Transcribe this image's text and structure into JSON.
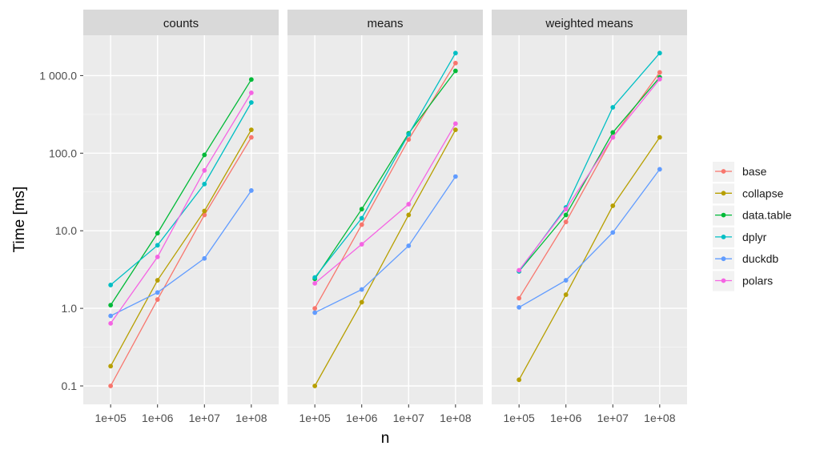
{
  "chart_data": {
    "type": "line",
    "facets": [
      "counts",
      "means",
      "weighted means"
    ],
    "x": [
      "1e+05",
      "1e+06",
      "1e+07",
      "1e+08"
    ],
    "xlabel": "n",
    "ylabel": "Time [ms]",
    "yscale": "log10",
    "ylim": [
      0.07,
      2600
    ],
    "yticks": [
      0.1,
      1,
      10,
      100,
      1000
    ],
    "ytick_labels": [
      "0.1",
      "1.0",
      "10.0",
      "100.0",
      "1 000.0"
    ],
    "legend_position": "right",
    "grid": true,
    "series": [
      {
        "name": "base",
        "color": "#F8766D",
        "values": {
          "counts": [
            0.1,
            1.3,
            16,
            160
          ],
          "means": [
            1.0,
            12,
            150,
            1450
          ],
          "weighted means": [
            1.35,
            13,
            160,
            1100
          ]
        }
      },
      {
        "name": "collapse",
        "color": "#B79F00",
        "values": {
          "counts": [
            0.18,
            2.3,
            18,
            200
          ],
          "means": [
            0.1,
            1.2,
            16,
            200
          ],
          "weighted means": [
            0.12,
            1.5,
            21,
            160
          ]
        }
      },
      {
        "name": "data.table",
        "color": "#00BA38",
        "values": {
          "counts": [
            1.1,
            9.3,
            95,
            890
          ],
          "means": [
            2.4,
            19,
            180,
            1150
          ],
          "weighted means": [
            3.0,
            16,
            185,
            950
          ]
        }
      },
      {
        "name": "dplyr",
        "color": "#00BFC4",
        "values": {
          "counts": [
            2.0,
            6.5,
            40,
            450
          ],
          "means": [
            2.5,
            14.5,
            175,
            1950
          ],
          "weighted means": [
            3.0,
            20,
            390,
            1950
          ]
        }
      },
      {
        "name": "duckdb",
        "color": "#619CFF",
        "values": {
          "counts": [
            0.8,
            1.6,
            4.4,
            33
          ],
          "means": [
            0.88,
            1.75,
            6.4,
            50
          ],
          "weighted means": [
            1.03,
            2.3,
            9.5,
            62
          ]
        }
      },
      {
        "name": "polars",
        "color": "#F564E3",
        "values": {
          "counts": [
            0.64,
            4.6,
            60,
            600
          ],
          "means": [
            2.1,
            6.7,
            22,
            240
          ],
          "weighted means": [
            3.1,
            19,
            160,
            900
          ]
        }
      }
    ]
  }
}
